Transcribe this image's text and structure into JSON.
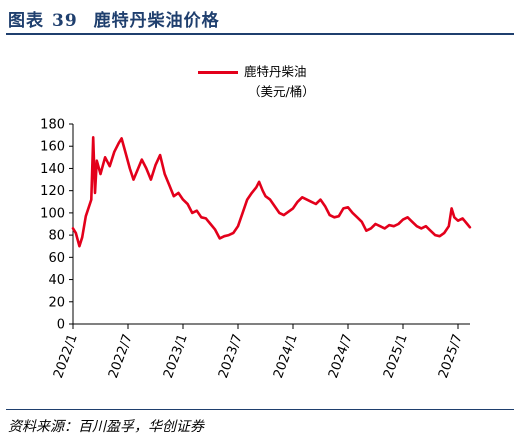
{
  "figure": {
    "label": "图表",
    "number": "39",
    "title": "鹿特丹柴油价格",
    "source": "资料来源：百川盈孚，华创证券"
  },
  "chart_data": {
    "type": "line",
    "title": "鹿特丹柴油价格",
    "xlabel": "",
    "ylabel": "",
    "ylim": [
      0,
      180
    ],
    "yticks": [
      0,
      20,
      40,
      60,
      80,
      100,
      120,
      140,
      160,
      180
    ],
    "xticks": [
      "2022/1",
      "2022/7",
      "2023/1",
      "2023/7",
      "2024/1",
      "2024/7",
      "2025/1",
      "2025/7"
    ],
    "grid": false,
    "legend": "top-center",
    "colors": {
      "line": "#e3001b",
      "title": "#1f3f6e"
    },
    "series": [
      {
        "name": "鹿特丹柴油",
        "unit": "（美元/桶）",
        "points": [
          [
            "2022/1",
            86
          ],
          [
            "2022/1.3",
            82
          ],
          [
            "2022/1.7",
            70
          ],
          [
            "2022/2",
            78
          ],
          [
            "2022/2.4",
            97
          ],
          [
            "2022/3",
            112
          ],
          [
            "2022/3.2",
            168
          ],
          [
            "2022/3.4",
            118
          ],
          [
            "2022/3.6",
            147
          ],
          [
            "2022/4",
            135
          ],
          [
            "2022/4.5",
            150
          ],
          [
            "2022/5",
            142
          ],
          [
            "2022/5.5",
            155
          ],
          [
            "2022/6",
            163
          ],
          [
            "2022/6.3",
            167
          ],
          [
            "2022/6.8",
            152
          ],
          [
            "2022/7.2",
            140
          ],
          [
            "2022/7.6",
            130
          ],
          [
            "2022/8",
            138
          ],
          [
            "2022/8.5",
            148
          ],
          [
            "2022/9",
            140
          ],
          [
            "2022/9.5",
            130
          ],
          [
            "2022/10",
            143
          ],
          [
            "2022/10.5",
            152
          ],
          [
            "2022/11",
            135
          ],
          [
            "2022/11.5",
            125
          ],
          [
            "2022/12",
            115
          ],
          [
            "2022/12.5",
            118
          ],
          [
            "2023/1",
            112
          ],
          [
            "2023/1.5",
            108
          ],
          [
            "2023/2",
            100
          ],
          [
            "2023/2.5",
            102
          ],
          [
            "2023/3",
            96
          ],
          [
            "2023/3.5",
            95
          ],
          [
            "2023/4",
            90
          ],
          [
            "2023/4.5",
            85
          ],
          [
            "2023/5",
            77
          ],
          [
            "2023/5.5",
            79
          ],
          [
            "2023/6",
            80
          ],
          [
            "2023/6.5",
            82
          ],
          [
            "2023/7",
            88
          ],
          [
            "2023/7.5",
            100
          ],
          [
            "2023/8",
            112
          ],
          [
            "2023/8.5",
            118
          ],
          [
            "2023/9",
            123
          ],
          [
            "2023/9.3",
            128
          ],
          [
            "2023/9.7",
            120
          ],
          [
            "2023/10",
            115
          ],
          [
            "2023/10.5",
            112
          ],
          [
            "2023/11",
            106
          ],
          [
            "2023/11.5",
            100
          ],
          [
            "2023/12",
            98
          ],
          [
            "2024/1",
            104
          ],
          [
            "2024/1.5",
            110
          ],
          [
            "2024/2",
            114
          ],
          [
            "2024/2.5",
            112
          ],
          [
            "2024/3",
            110
          ],
          [
            "2024/3.5",
            108
          ],
          [
            "2024/4",
            112
          ],
          [
            "2024/4.5",
            106
          ],
          [
            "2024/5",
            98
          ],
          [
            "2024/5.5",
            96
          ],
          [
            "2024/6",
            97
          ],
          [
            "2024/6.5",
            104
          ],
          [
            "2024/7",
            105
          ],
          [
            "2024/7.5",
            100
          ],
          [
            "2024/8",
            96
          ],
          [
            "2024/8.5",
            92
          ],
          [
            "2024/9",
            84
          ],
          [
            "2024/9.5",
            86
          ],
          [
            "2024/10",
            90
          ],
          [
            "2024/10.5",
            88
          ],
          [
            "2024/11",
            86
          ],
          [
            "2024/11.5",
            89
          ],
          [
            "2024/12",
            88
          ],
          [
            "2024/12.5",
            90
          ],
          [
            "2025/1",
            94
          ],
          [
            "2025/1.5",
            96
          ],
          [
            "2025/2",
            92
          ],
          [
            "2025/2.5",
            88
          ],
          [
            "2025/3",
            86
          ],
          [
            "2025/3.5",
            88
          ],
          [
            "2025/4",
            84
          ],
          [
            "2025/4.5",
            80
          ],
          [
            "2025/5",
            79
          ],
          [
            "2025/5.5",
            82
          ],
          [
            "2025/6",
            88
          ],
          [
            "2025/6.3",
            104
          ],
          [
            "2025/6.6",
            96
          ],
          [
            "2025/7",
            93
          ],
          [
            "2025/7.5",
            95
          ],
          [
            "2025/8",
            90
          ],
          [
            "2025/8.3",
            87
          ]
        ]
      }
    ]
  }
}
